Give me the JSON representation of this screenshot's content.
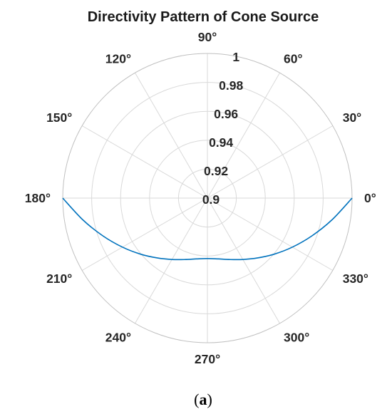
{
  "chart_data": {
    "type": "polar-line",
    "title": "Directivity Pattern of Cone Source",
    "theta_ticks": [
      "0°",
      "30°",
      "60°",
      "90°",
      "120°",
      "150°",
      "180°",
      "210°",
      "240°",
      "270°",
      "300°",
      "330°"
    ],
    "theta_tick_values": [
      0,
      30,
      60,
      90,
      120,
      150,
      180,
      210,
      240,
      270,
      300,
      330
    ],
    "r_ticks": [
      "0.9",
      "0.92",
      "0.94",
      "0.96",
      "0.98",
      "1"
    ],
    "r_tick_values": [
      0.9,
      0.92,
      0.94,
      0.96,
      0.98,
      1.0
    ],
    "rlim": [
      0.9,
      1.0
    ],
    "grid": true,
    "series": [
      {
        "color": "#0072BD",
        "theta_deg": [
          180,
          190,
          200,
          210,
          220,
          230,
          240,
          250,
          260,
          270,
          280,
          290,
          300,
          310,
          320,
          330,
          340,
          350,
          360
        ],
        "r": [
          1.0,
          0.9873,
          0.9767,
          0.9678,
          0.9603,
          0.954,
          0.949,
          0.9452,
          0.9427,
          0.9418,
          0.9427,
          0.9452,
          0.949,
          0.954,
          0.9603,
          0.9678,
          0.9767,
          0.9873,
          1.0
        ]
      }
    ]
  },
  "caption": {
    "open": "(",
    "label": "a",
    "close": ")"
  }
}
